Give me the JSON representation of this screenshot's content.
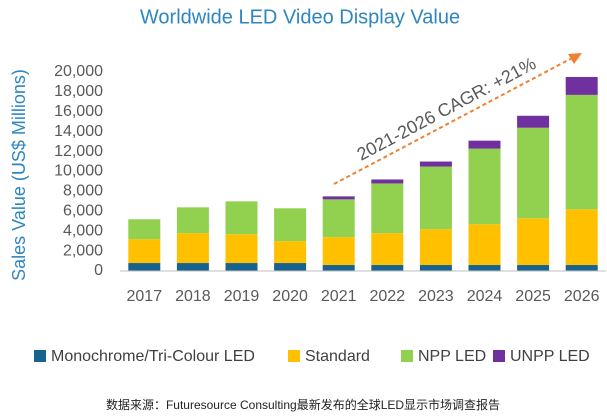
{
  "chart_data": {
    "type": "stacked_bar",
    "title": "Worldwide LED Video Display Value",
    "y_label": "Sales Value (US$ Millions)",
    "annotation": "2021-2026 CAGR: +21%",
    "source": "数据来源：Futuresource Consulting最新发布的全球LED显示市场调查报告",
    "categories": [
      "2017",
      "2018",
      "2019",
      "2020",
      "2021",
      "2022",
      "2023",
      "2024",
      "2025",
      "2026"
    ],
    "series": [
      {
        "name": "Monochrome/Tri-Colour LED",
        "color": "#17628f",
        "values": [
          800,
          800,
          800,
          800,
          600,
          600,
          600,
          600,
          600,
          600
        ]
      },
      {
        "name": "Standard",
        "color": "#ffc000",
        "values": [
          2400,
          3000,
          2900,
          2200,
          2800,
          3200,
          3600,
          4100,
          4700,
          5600
        ]
      },
      {
        "name": "NPP LED",
        "color": "#92d050",
        "values": [
          2000,
          2600,
          3300,
          3300,
          3800,
          5000,
          6300,
          7600,
          9100,
          11500
        ]
      },
      {
        "name": "UNPP LED",
        "color": "#7030a0",
        "values": [
          0,
          0,
          0,
          0,
          300,
          400,
          500,
          800,
          1200,
          1800
        ]
      }
    ],
    "ylim": [
      0,
      20000
    ],
    "yticks": [
      0,
      {
        "value": 2000,
        "label": "2,000"
      },
      {
        "value": 4000,
        "label": "4,000"
      },
      {
        "value": 6000,
        "label": "6,000"
      },
      {
        "value": 8000,
        "label": "8,000"
      },
      {
        "value": 10000,
        "label": "10,000"
      },
      {
        "value": 12000,
        "label": "12,000"
      },
      {
        "value": 14000,
        "label": "14,000"
      },
      {
        "value": 16000,
        "label": "16,000"
      },
      {
        "value": 18000,
        "label": "18,000"
      },
      {
        "value": 20000,
        "label": "20,000"
      }
    ]
  }
}
